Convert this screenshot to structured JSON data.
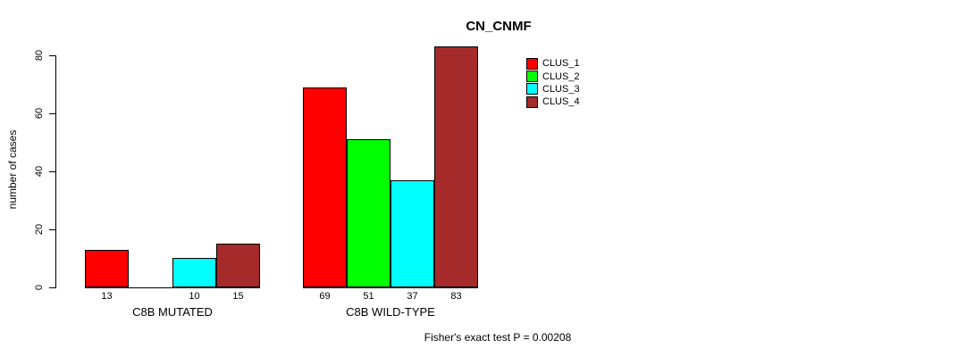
{
  "chart_data": {
    "type": "bar",
    "title": "CN_CNMF",
    "ylabel": "number of cases",
    "ylim": [
      0,
      85
    ],
    "yticks": [
      0,
      20,
      40,
      60,
      80
    ],
    "grid": false,
    "legend_position": "top-right",
    "categories": [
      "C8B MUTATED",
      "C8B WILD-TYPE"
    ],
    "series": [
      {
        "name": "CLUS_1",
        "color": "#FF0000",
        "values": [
          13,
          69
        ]
      },
      {
        "name": "CLUS_2",
        "color": "#00FF00",
        "values": [
          0,
          51
        ]
      },
      {
        "name": "CLUS_3",
        "color": "#00FFFF",
        "values": [
          10,
          37
        ]
      },
      {
        "name": "CLUS_4",
        "color": "#A52A2A",
        "values": [
          15,
          83
        ]
      }
    ],
    "bar_value_labels_shown": true,
    "annotation": "Fisher's exact test P = 0.00208"
  }
}
